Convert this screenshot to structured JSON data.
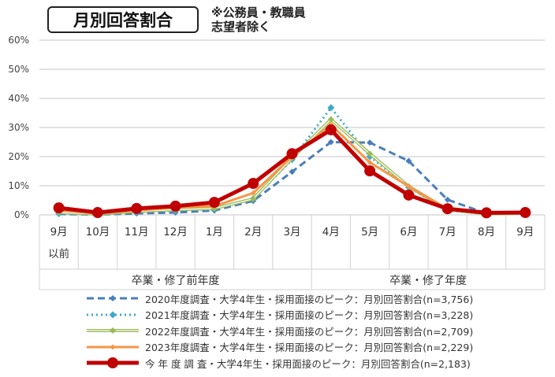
{
  "title": "月別回答割合",
  "note_line1": "※公務員・教職員",
  "note_line2": "志望者除く",
  "chart_data": {
    "type": "line",
    "title": "月別回答割合",
    "ylim": [
      0,
      60
    ],
    "yticks": [
      "0%",
      "10%",
      "20%",
      "30%",
      "40%",
      "50%",
      "60%"
    ],
    "ytick_values": [
      0,
      10,
      20,
      30,
      40,
      50,
      60
    ],
    "categories": [
      "9月",
      "10月",
      "11月",
      "12月",
      "1月",
      "2月",
      "3月",
      "4月",
      "5月",
      "6月",
      "7月",
      "8月",
      "9月"
    ],
    "category_sublabel": "以前",
    "groups": [
      {
        "label": "卒業・修了前年度"
      },
      {
        "label": "卒業・修了年度"
      }
    ],
    "grid": true,
    "legend_position": "bottom",
    "series": [
      {
        "name": "2020年度調査・大学4年生・採用面接のピーク：月別回答割合(n=3,756)",
        "color": "#4a7ebb",
        "style": "dashed",
        "values": [
          0.3,
          0.1,
          0.5,
          0.8,
          1.5,
          4.8,
          14.8,
          25.0,
          24.8,
          18.5,
          5.2,
          0.5,
          0.6
        ]
      },
      {
        "name": "2021年度調査・大学4年生・採用面接のピーク：月別回答割合(n=3,228)",
        "color": "#3fa9c9",
        "style": "dotted",
        "values": [
          0.5,
          0.2,
          1.0,
          1.5,
          2.0,
          5.5,
          19.0,
          36.8,
          20.0,
          9.5,
          1.5,
          0.3,
          0.6
        ]
      },
      {
        "name": "2022年度調査・大学4年生・採用面接のピーク：月別回答割合(n=2,709)",
        "color": "#9bbb59",
        "style": "double",
        "values": [
          0.8,
          0.3,
          1.2,
          1.8,
          2.2,
          5.5,
          19.5,
          32.8,
          21.0,
          9.8,
          1.8,
          0.4,
          0.6
        ]
      },
      {
        "name": "2023年度調査・大学4年生・採用面接のピーク：月別回答割合(n=2,229)",
        "color": "#f79646",
        "style": "solid",
        "values": [
          1.5,
          0.5,
          1.5,
          2.5,
          3.0,
          7.5,
          20.0,
          31.0,
          18.0,
          9.8,
          2.0,
          0.5,
          0.7
        ]
      },
      {
        "name": "今 年 度 調 査・大学4年生・採用面接のピーク：月別回答割合(n=2,183)",
        "color": "#c00000",
        "style": "bold",
        "values": [
          2.4,
          0.8,
          2.2,
          3.0,
          4.3,
          10.8,
          21.0,
          29.2,
          15.1,
          6.8,
          2.1,
          0.7,
          0.8
        ]
      }
    ]
  }
}
